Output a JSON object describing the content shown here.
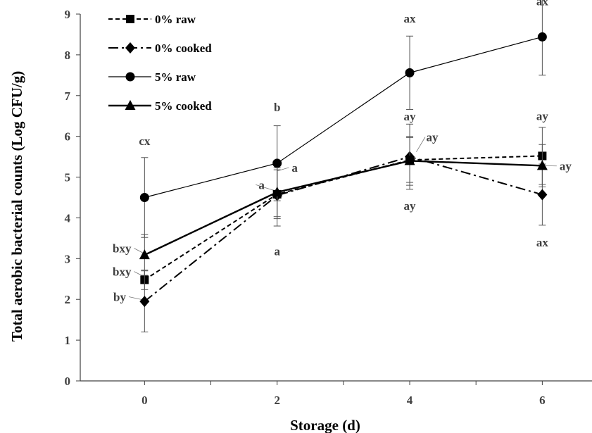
{
  "chart_data": {
    "type": "line",
    "xlabel": "Storage (d)",
    "ylabel": "Total aerobic bacterial counts (Log CFU/g)",
    "xlim": [
      -0.97,
      6.75
    ],
    "ylim": [
      0,
      9
    ],
    "x_ticks": [
      "0",
      "2",
      "4",
      "6"
    ],
    "y_ticks": [
      "0",
      "1",
      "2",
      "3",
      "4",
      "5",
      "6",
      "7",
      "8",
      "9"
    ],
    "grid": false,
    "legend_position": "top-left",
    "series": [
      {
        "name": "0% raw",
        "marker": "square",
        "line": "dashed-short",
        "stroke_width": 2,
        "x": [
          0,
          2,
          4,
          6
        ],
        "y": [
          2.48,
          4.58,
          5.42,
          5.52
        ],
        "err": [
          0.24,
          0.6,
          0.55,
          0.7
        ],
        "labels": [
          "bxy",
          "",
          "",
          ""
        ]
      },
      {
        "name": "0% cooked",
        "marker": "diamond",
        "line": "dash-dot",
        "stroke_width": 2,
        "x": [
          0,
          2,
          4,
          6
        ],
        "y": [
          1.95,
          4.55,
          5.5,
          4.57
        ],
        "err": [
          0.75,
          0.75,
          0.8,
          0.75
        ],
        "labels": [
          "by",
          "a",
          "ay",
          "ax"
        ]
      },
      {
        "name": "5% raw",
        "marker": "circle",
        "line": "solid",
        "stroke_width": 1.2,
        "x": [
          0,
          2,
          4,
          6
        ],
        "y": [
          4.5,
          5.34,
          7.56,
          8.44
        ],
        "err": [
          0.98,
          0.92,
          0.9,
          0.94
        ],
        "labels": [
          "cx",
          "b",
          "ax",
          "ax"
        ]
      },
      {
        "name": "5% cooked",
        "marker": "triangle",
        "line": "solid",
        "stroke_width": 2.4,
        "x": [
          0,
          2,
          4,
          6
        ],
        "y": [
          3.09,
          4.63,
          5.4,
          5.28
        ],
        "err": [
          0.5,
          0.6,
          0.6,
          0.52
        ],
        "labels": [
          "bxy",
          "a",
          "ay",
          "ay"
        ]
      }
    ],
    "annotations": [
      {
        "text": "cx",
        "x": 0,
        "y": 5.79,
        "anchor": "middle",
        "leader": false
      },
      {
        "text": "bxy",
        "x": -0.2,
        "y": 3.15,
        "anchor": "end",
        "leader": true,
        "lx": 0,
        "ly": 3.12
      },
      {
        "text": "bxy",
        "x": -0.2,
        "y": 2.58,
        "anchor": "end",
        "leader": true,
        "lx": 0,
        "ly": 2.55
      },
      {
        "text": "by",
        "x": -0.28,
        "y": 1.96,
        "anchor": "end",
        "leader": true,
        "lx": 0,
        "ly": 1.98
      },
      {
        "text": "b",
        "x": 2,
        "y": 6.62,
        "anchor": "middle",
        "leader": false
      },
      {
        "text": "a",
        "x": 2.22,
        "y": 5.13,
        "anchor": "start",
        "leader": true,
        "lx": 2,
        "ly": 5.15
      },
      {
        "text": "a",
        "x": 1.72,
        "y": 4.71,
        "anchor": "start",
        "leader": true,
        "lx": 2,
        "ly": 4.65
      },
      {
        "text": "a",
        "x": 2,
        "y": 3.08,
        "anchor": "middle",
        "leader": false
      },
      {
        "text": "ax",
        "x": 4,
        "y": 8.79,
        "anchor": "middle",
        "leader": false
      },
      {
        "text": "ay",
        "x": 4,
        "y": 6.39,
        "anchor": "middle",
        "leader": false
      },
      {
        "text": "ay",
        "x": 4.34,
        "y": 5.88,
        "anchor": "middle",
        "leader": true,
        "lx": 4.1,
        "ly": 5.62
      },
      {
        "text": "ay",
        "x": 4,
        "y": 4.2,
        "anchor": "middle",
        "leader": false
      },
      {
        "text": "ax",
        "x": 6,
        "y": 9.22,
        "anchor": "middle",
        "leader": false
      },
      {
        "text": "ay",
        "x": 6,
        "y": 6.4,
        "anchor": "middle",
        "leader": false
      },
      {
        "text": "ay",
        "x": 6.26,
        "y": 5.17,
        "anchor": "start",
        "leader": true,
        "lx": 6,
        "ly": 5.28
      },
      {
        "text": "ax",
        "x": 6,
        "y": 3.3,
        "anchor": "middle",
        "leader": false
      }
    ]
  }
}
